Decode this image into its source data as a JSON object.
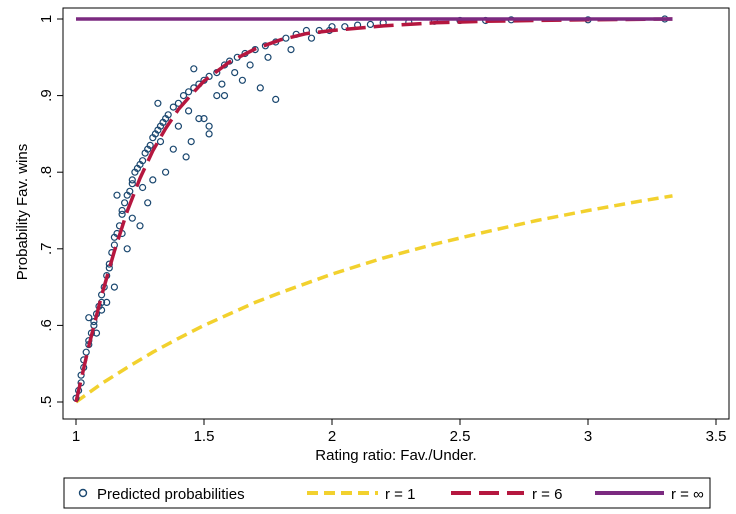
{
  "chart_data": {
    "type": "scatter",
    "xlabel": "Rating ratio: Fav./Under.",
    "ylabel": "Probability Fav. wins",
    "xlim": [
      1,
      3.5
    ],
    "ylim": [
      0.5,
      1
    ],
    "x_ticks": [
      {
        "value": 1,
        "label": "1"
      },
      {
        "value": 1.5,
        "label": "1.5"
      },
      {
        "value": 2,
        "label": "2"
      },
      {
        "value": 2.5,
        "label": "2.5"
      },
      {
        "value": 3,
        "label": "3"
      },
      {
        "value": 3.5,
        "label": "3.5"
      }
    ],
    "y_ticks": [
      {
        "value": 0.5,
        "label": ".5"
      },
      {
        "value": 0.6,
        "label": ".6"
      },
      {
        "value": 0.7,
        "label": ".7"
      },
      {
        "value": 0.8,
        "label": ".8"
      },
      {
        "value": 0.9,
        "label": ".9"
      },
      {
        "value": 1,
        "label": "1"
      }
    ],
    "grid": false,
    "legend_position": "bottom",
    "series": [
      {
        "name": "Predicted probabilities",
        "kind": "scatter",
        "color": "#1a476f",
        "x": [
          1.0,
          1.01,
          1.02,
          1.02,
          1.03,
          1.03,
          1.04,
          1.05,
          1.05,
          1.06,
          1.07,
          1.07,
          1.08,
          1.09,
          1.1,
          1.1,
          1.11,
          1.12,
          1.13,
          1.13,
          1.14,
          1.15,
          1.15,
          1.16,
          1.17,
          1.18,
          1.18,
          1.19,
          1.2,
          1.21,
          1.22,
          1.22,
          1.23,
          1.24,
          1.25,
          1.26,
          1.27,
          1.28,
          1.29,
          1.3,
          1.31,
          1.32,
          1.33,
          1.34,
          1.35,
          1.36,
          1.38,
          1.4,
          1.42,
          1.44,
          1.46,
          1.48,
          1.5,
          1.52,
          1.55,
          1.58,
          1.6,
          1.63,
          1.66,
          1.7,
          1.74,
          1.78,
          1.82,
          1.86,
          1.9,
          1.95,
          2.0,
          2.05,
          2.1,
          2.15,
          2.2,
          2.3,
          2.4,
          2.5,
          2.6,
          2.7,
          3.0,
          3.3,
          1.05,
          1.12,
          1.18,
          1.22,
          1.28,
          1.35,
          1.43,
          1.52,
          1.78,
          1.32,
          1.44,
          1.52,
          1.57,
          1.46,
          1.16,
          1.26,
          1.38,
          1.48,
          1.55,
          1.65,
          1.72,
          1.08,
          1.1,
          1.15,
          1.2,
          1.25,
          1.3,
          1.33,
          1.4,
          1.45,
          1.5,
          1.58,
          1.62,
          1.68,
          1.75,
          1.84,
          1.92,
          1.99
        ],
        "y": [
          0.505,
          0.515,
          0.525,
          0.535,
          0.545,
          0.555,
          0.565,
          0.575,
          0.58,
          0.59,
          0.6,
          0.605,
          0.615,
          0.625,
          0.63,
          0.64,
          0.65,
          0.665,
          0.675,
          0.68,
          0.695,
          0.705,
          0.715,
          0.72,
          0.73,
          0.745,
          0.75,
          0.76,
          0.77,
          0.775,
          0.785,
          0.79,
          0.8,
          0.805,
          0.81,
          0.815,
          0.825,
          0.83,
          0.835,
          0.845,
          0.85,
          0.855,
          0.86,
          0.865,
          0.87,
          0.875,
          0.885,
          0.89,
          0.9,
          0.905,
          0.91,
          0.915,
          0.92,
          0.925,
          0.93,
          0.94,
          0.945,
          0.95,
          0.955,
          0.96,
          0.965,
          0.97,
          0.975,
          0.98,
          0.985,
          0.985,
          0.99,
          0.99,
          0.992,
          0.993,
          0.995,
          0.996,
          0.997,
          0.998,
          0.998,
          0.999,
          0.999,
          1.0,
          0.61,
          0.63,
          0.72,
          0.74,
          0.76,
          0.8,
          0.82,
          0.86,
          0.895,
          0.89,
          0.88,
          0.85,
          0.915,
          0.935,
          0.77,
          0.78,
          0.83,
          0.87,
          0.9,
          0.92,
          0.91,
          0.59,
          0.62,
          0.65,
          0.7,
          0.73,
          0.79,
          0.84,
          0.86,
          0.84,
          0.87,
          0.9,
          0.93,
          0.94,
          0.95,
          0.96,
          0.975,
          0.985
        ]
      },
      {
        "name": "r = 1",
        "kind": "line",
        "color": "#f2d12e",
        "style": "dashed",
        "x": [
          1.0,
          1.1,
          1.2,
          1.3,
          1.4,
          1.5,
          1.6,
          1.7,
          1.8,
          1.9,
          2.0,
          2.2,
          2.4,
          2.6,
          2.8,
          3.0,
          3.2,
          3.33
        ],
        "y": [
          0.5,
          0.524,
          0.545,
          0.565,
          0.583,
          0.6,
          0.615,
          0.63,
          0.643,
          0.655,
          0.667,
          0.688,
          0.706,
          0.722,
          0.737,
          0.75,
          0.762,
          0.769
        ]
      },
      {
        "name": "r = 6",
        "kind": "line",
        "color": "#b5173f",
        "style": "dashed",
        "x": [
          1.0,
          1.05,
          1.1,
          1.15,
          1.2,
          1.25,
          1.3,
          1.35,
          1.4,
          1.45,
          1.5,
          1.6,
          1.7,
          1.8,
          1.9,
          2.0,
          2.2,
          2.4,
          2.6,
          2.8,
          3.0,
          3.33
        ],
        "y": [
          0.5,
          0.573,
          0.639,
          0.697,
          0.749,
          0.792,
          0.828,
          0.857,
          0.882,
          0.901,
          0.919,
          0.944,
          0.961,
          0.973,
          0.981,
          0.985,
          0.991,
          0.995,
          0.997,
          0.998,
          0.999,
          1.0
        ]
      },
      {
        "name": "r = ∞",
        "kind": "line",
        "color": "#7b2a80",
        "style": "solid",
        "x": [
          1.0,
          3.33
        ],
        "y": [
          1.0,
          1.0
        ]
      }
    ]
  }
}
